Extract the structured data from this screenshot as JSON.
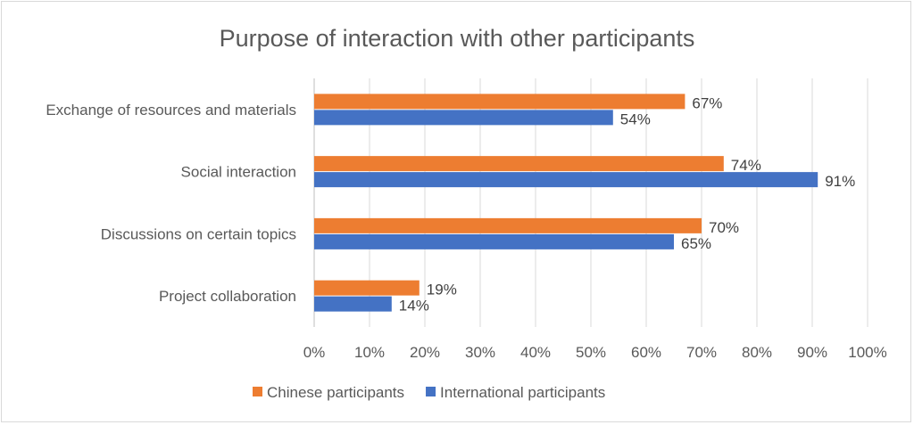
{
  "chart_data": {
    "type": "bar",
    "orientation": "horizontal",
    "title": "Purpose of interaction with other participants",
    "categories": [
      "Exchange of resources and materials",
      "Social interaction",
      "Discussions on certain topics",
      "Project collaboration"
    ],
    "series": [
      {
        "name": "Chinese participants",
        "color": "#ED7D31",
        "values": [
          67,
          74,
          70,
          19
        ],
        "labels": [
          "67%",
          "74%",
          "70%",
          "19%"
        ]
      },
      {
        "name": "International participants",
        "color": "#4472C4",
        "values": [
          54,
          91,
          65,
          14
        ],
        "labels": [
          "54%",
          "91%",
          "65%",
          "14%"
        ]
      }
    ],
    "xlim": [
      0,
      100
    ],
    "xticks": [
      "0%",
      "10%",
      "20%",
      "30%",
      "40%",
      "50%",
      "60%",
      "70%",
      "80%",
      "90%",
      "100%"
    ],
    "grid": true,
    "legend": "bottom"
  }
}
